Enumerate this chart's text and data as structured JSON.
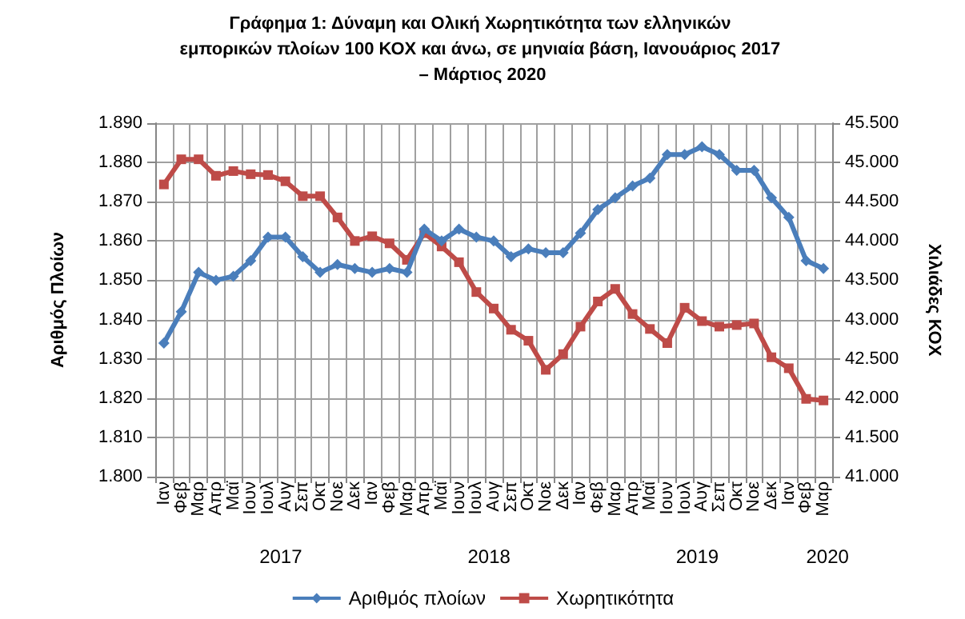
{
  "chart_data": {
    "type": "line",
    "title": "Γράφημα 1: Δύναμη και Ολική Χωρητικότητα των ελληνικών εμπορικών πλοίων 100 ΚΟΧ και άνω, σε μηνιαία βάση, Ιανουάριος 2017 – Μάρτιος 2020",
    "ylabel": "Αριθμός Πλοίων",
    "y2label": "Χιλιάδες ΚΟΧ",
    "categories": [
      "Ιαν",
      "Φεβ",
      "Μαρ",
      "Απρ",
      "Μαϊ",
      "Ιουν",
      "Ιουλ",
      "Αυγ",
      "Σεπ",
      "Οκτ",
      "Νοε",
      "Δεκ",
      "Ιαν",
      "Φεβ",
      "Μαρ",
      "Απρ",
      "Μαϊ",
      "Ιουν",
      "Ιουλ",
      "Αυγ",
      "Σεπ",
      "Οκτ",
      "Νοε",
      "Δεκ",
      "Ιαν",
      "Φεβ",
      "Μαρ",
      "Απρ",
      "Μαϊ",
      "Ιουν",
      "Ιουλ",
      "Αυγ",
      "Σεπ",
      "Οκτ",
      "Νοε",
      "Δεκ",
      "Ιαν",
      "Φεβ",
      "Μαρ"
    ],
    "annotations": [
      "2017",
      "2018",
      "2019",
      "2020"
    ],
    "series": [
      {
        "name": "Αριθμός πλοίων",
        "color": "#4a7ebb",
        "marker": "diamond",
        "values": [
          1834,
          1842,
          1852,
          1850,
          1851,
          1855,
          1861,
          1861,
          1856,
          1852,
          1854,
          1853,
          1852,
          1853,
          1852,
          1863,
          1860,
          1863,
          1861,
          1860,
          1856,
          1858,
          1857,
          1857,
          1862,
          1868,
          1871,
          1874,
          1876,
          1882,
          1882,
          1884,
          1882,
          1878,
          1878,
          1871,
          1866,
          1855,
          1853
        ]
      },
      {
        "name": "Χωρητικότητα",
        "color": "#be4b48",
        "marker": "square",
        "axis": "y2",
        "values": [
          44720,
          45040,
          45040,
          44830,
          44890,
          44850,
          44840,
          44760,
          44570,
          44570,
          44300,
          44000,
          44060,
          43970,
          43760,
          44100,
          43930,
          43730,
          43350,
          43140,
          42870,
          42730,
          42360,
          42560,
          42910,
          43230,
          43390,
          43070,
          42880,
          42700,
          43150,
          42980,
          42910,
          42930,
          42950,
          42520,
          42380,
          41990,
          41970
        ]
      }
    ],
    "ylim": [
      1800,
      1890
    ],
    "yticks": [
      {
        "value": 1800,
        "label": "1.800"
      },
      {
        "value": 1810,
        "label": "1.810"
      },
      {
        "value": 1820,
        "label": "1.820"
      },
      {
        "value": 1830,
        "label": "1.830"
      },
      {
        "value": 1840,
        "label": "1.840"
      },
      {
        "value": 1850,
        "label": "1.850"
      },
      {
        "value": 1860,
        "label": "1.860"
      },
      {
        "value": 1870,
        "label": "1.870"
      },
      {
        "value": 1880,
        "label": "1.880"
      },
      {
        "value": 1890,
        "label": "1.890"
      }
    ],
    "y2lim": [
      41000,
      45500
    ],
    "y2ticks": [
      {
        "value": 41000,
        "label": "41.000"
      },
      {
        "value": 41500,
        "label": "41.500"
      },
      {
        "value": 42000,
        "label": "42.000"
      },
      {
        "value": 42500,
        "label": "42.500"
      },
      {
        "value": 43000,
        "label": "43.000"
      },
      {
        "value": 43500,
        "label": "43.500"
      },
      {
        "value": 44000,
        "label": "44.000"
      },
      {
        "value": 44500,
        "label": "44.500"
      },
      {
        "value": 45000,
        "label": "45.000"
      },
      {
        "value": 45500,
        "label": "45.500"
      }
    ],
    "grid": true,
    "legend": "bottom",
    "line_style": "solid"
  }
}
